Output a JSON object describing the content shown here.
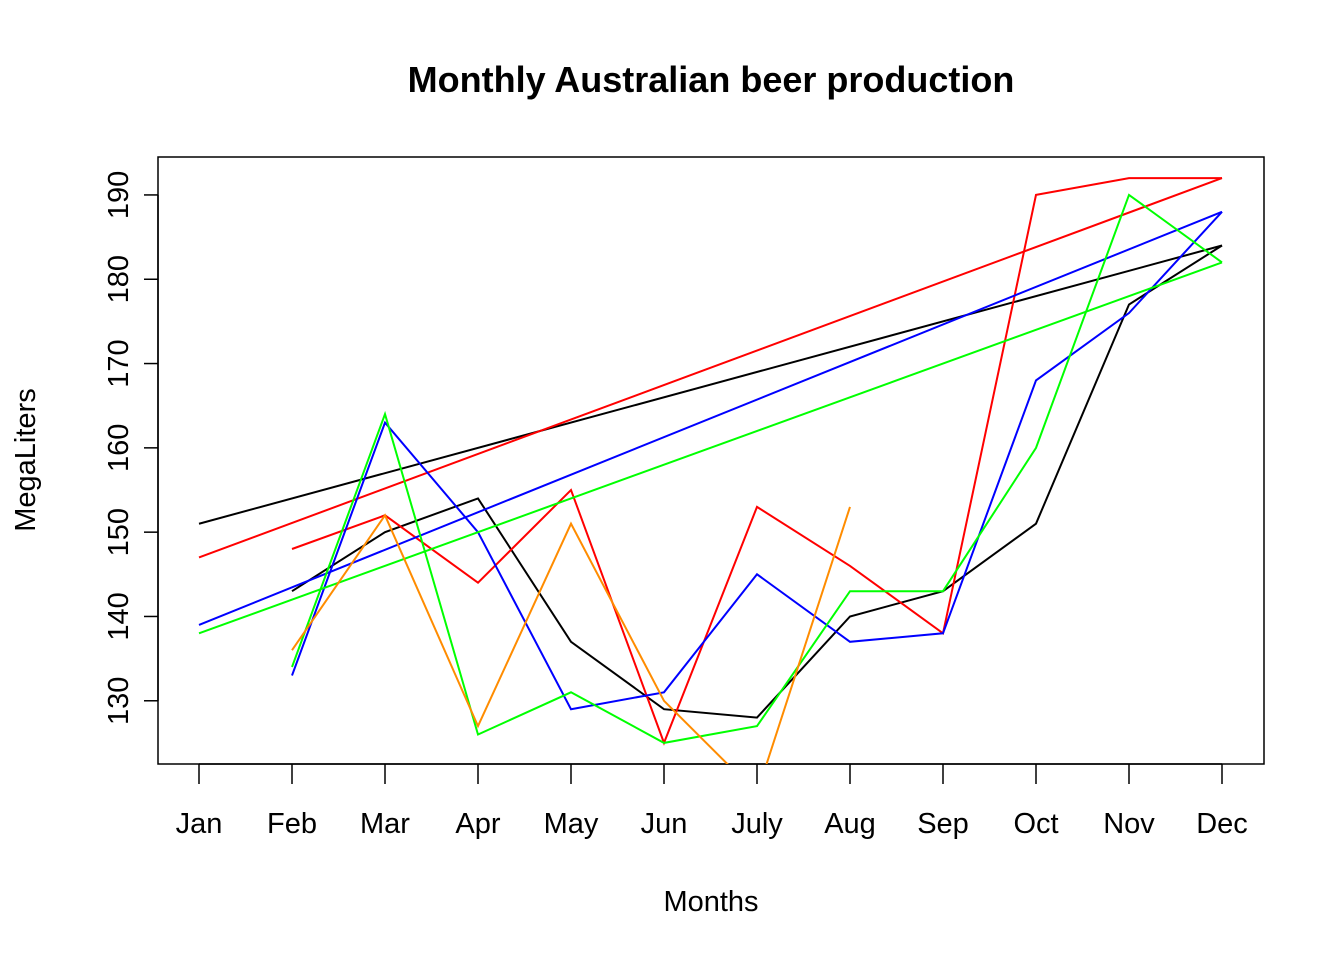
{
  "chart_data": {
    "type": "line",
    "title": "Monthly Australian beer production",
    "xlabel": "Months",
    "ylabel": "MegaLiters",
    "categories": [
      "Jan",
      "Feb",
      "Mar",
      "Apr",
      "May",
      "Jun",
      "July",
      "Aug",
      "Sep",
      "Oct",
      "Nov",
      "Dec"
    ],
    "y_ticks": [
      130,
      140,
      150,
      160,
      170,
      180,
      190
    ],
    "ylim": [
      122.5,
      194.5
    ],
    "grid": false,
    "legend": "none",
    "series": [
      {
        "color": "#000000",
        "values": [
          null,
          143,
          150,
          154,
          137,
          129,
          128,
          140,
          143,
          151,
          177,
          184
        ],
        "trend": [
          151,
          184
        ]
      },
      {
        "color": "#ff0000",
        "values": [
          null,
          148,
          152,
          144,
          155,
          125,
          153,
          146,
          138,
          190,
          192,
          192
        ],
        "trend": [
          147,
          192
        ]
      },
      {
        "color": "#0000ff",
        "values": [
          null,
          133,
          163,
          150,
          129,
          131,
          145,
          137,
          138,
          168,
          176,
          188
        ],
        "trend": [
          139,
          188
        ]
      },
      {
        "color": "#00ff00",
        "values": [
          null,
          134,
          164,
          126,
          131,
          125,
          127,
          143,
          143,
          160,
          190,
          182
        ],
        "trend": [
          138,
          182
        ]
      },
      {
        "color": "#ff8c00",
        "values": [
          null,
          136,
          152,
          127,
          151,
          130,
          119,
          153,
          null,
          null,
          null,
          null
        ]
      }
    ]
  }
}
